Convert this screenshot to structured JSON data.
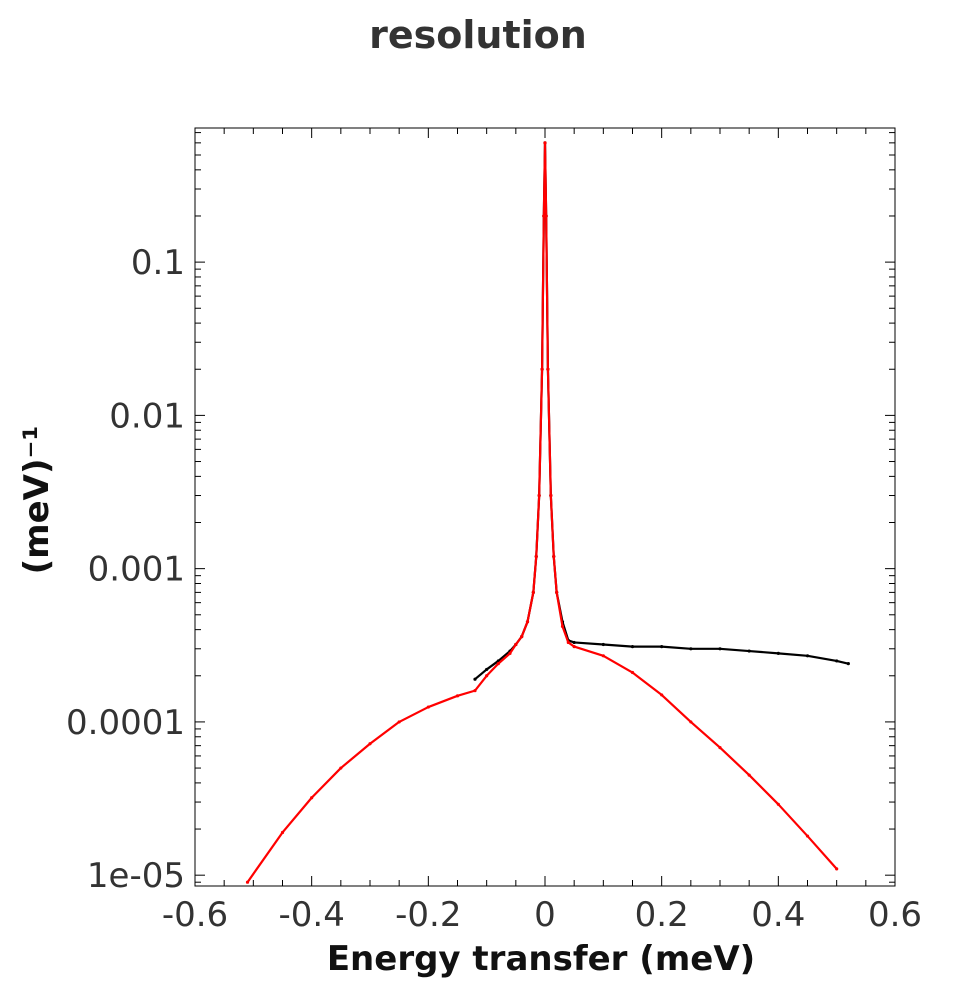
{
  "chart_data": {
    "type": "line",
    "title": "resolution",
    "xlabel": "Energy transfer (meV)",
    "ylabel": "(meV)⁻¹",
    "xlim": [
      -0.6,
      0.6
    ],
    "ylim": [
      8.5e-06,
      0.75
    ],
    "yscale": "log",
    "grid": false,
    "legend": "none",
    "x_ticks": [
      {
        "value": -0.6,
        "label": "-0.6"
      },
      {
        "value": -0.4,
        "label": "-0.4"
      },
      {
        "value": -0.2,
        "label": "-0.2"
      },
      {
        "value": 0,
        "label": "0"
      },
      {
        "value": 0.2,
        "label": "0.2"
      },
      {
        "value": 0.4,
        "label": "0.4"
      },
      {
        "value": 0.6,
        "label": "0.6"
      }
    ],
    "y_ticks": [
      {
        "value": 1e-05,
        "label": "1e-05"
      },
      {
        "value": 0.0001,
        "label": "0.0001"
      },
      {
        "value": 0.001,
        "label": "0.001"
      },
      {
        "value": 0.01,
        "label": "0.01"
      },
      {
        "value": 0.1,
        "label": "0.1"
      }
    ],
    "series": [
      {
        "color": "#000000",
        "x": [
          -0.12,
          -0.1,
          -0.08,
          -0.06,
          -0.05,
          -0.04,
          -0.03,
          -0.02,
          -0.015,
          -0.01,
          -0.005,
          -0.002,
          0,
          0.002,
          0.005,
          0.01,
          0.015,
          0.02,
          0.03,
          0.04,
          0.05,
          0.1,
          0.15,
          0.2,
          0.25,
          0.3,
          0.35,
          0.4,
          0.45,
          0.5,
          0.52
        ],
        "y": [
          0.00019,
          0.00022,
          0.00025,
          0.00029,
          0.00032,
          0.00036,
          0.00045,
          0.0007,
          0.0012,
          0.003,
          0.02,
          0.2,
          0.6,
          0.2,
          0.02,
          0.003,
          0.0012,
          0.0007,
          0.00045,
          0.00034,
          0.00033,
          0.00032,
          0.00031,
          0.00031,
          0.0003,
          0.0003,
          0.00029,
          0.00028,
          0.00027,
          0.00025,
          0.00024
        ]
      },
      {
        "color": "#ff0000",
        "x": [
          -0.51,
          -0.45,
          -0.4,
          -0.35,
          -0.3,
          -0.25,
          -0.2,
          -0.15,
          -0.12,
          -0.1,
          -0.08,
          -0.06,
          -0.05,
          -0.04,
          -0.03,
          -0.02,
          -0.015,
          -0.01,
          -0.005,
          -0.002,
          0,
          0.002,
          0.005,
          0.01,
          0.015,
          0.02,
          0.03,
          0.04,
          0.05,
          0.1,
          0.15,
          0.2,
          0.25,
          0.3,
          0.35,
          0.4,
          0.45,
          0.5
        ],
        "y": [
          9e-06,
          1.9e-05,
          3.2e-05,
          5e-05,
          7.2e-05,
          0.0001,
          0.000125,
          0.000148,
          0.00016,
          0.0002,
          0.00024,
          0.00028,
          0.00032,
          0.00036,
          0.00045,
          0.0007,
          0.0012,
          0.003,
          0.02,
          0.2,
          0.6,
          0.2,
          0.02,
          0.003,
          0.0012,
          0.0007,
          0.00042,
          0.00033,
          0.00031,
          0.00027,
          0.00021,
          0.00015,
          0.0001,
          6.8e-05,
          4.5e-05,
          2.9e-05,
          1.8e-05,
          1.1e-05
        ]
      }
    ]
  }
}
